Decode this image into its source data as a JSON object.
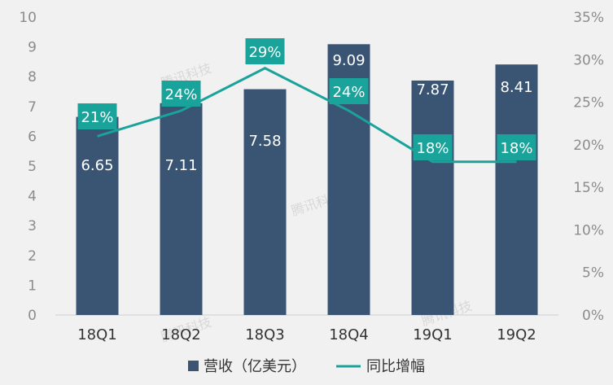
{
  "chart_data": {
    "type": "bar",
    "categories": [
      "18Q1",
      "18Q2",
      "18Q3",
      "18Q4",
      "19Q1",
      "19Q2"
    ],
    "series": [
      {
        "name": "营收（亿美元）",
        "type": "bar",
        "axis": "left",
        "values": [
          6.65,
          7.11,
          7.58,
          9.09,
          7.87,
          8.41
        ],
        "labels": [
          "6.65",
          "7.11",
          "7.58",
          "9.09",
          "7.87",
          "8.41"
        ],
        "color": "#3a5573"
      },
      {
        "name": "同比增幅",
        "type": "line",
        "axis": "right",
        "values": [
          21,
          24,
          29,
          24,
          18,
          18
        ],
        "labels": [
          "21%",
          "24%",
          "29%",
          "24%",
          "18%",
          "18%"
        ],
        "color": "#1aa39a"
      }
    ],
    "left_axis": {
      "ylim": [
        0,
        10
      ],
      "ticks": [
        "0",
        "1",
        "2",
        "3",
        "4",
        "5",
        "6",
        "7",
        "8",
        "9",
        "10"
      ]
    },
    "right_axis": {
      "ylim": [
        0,
        35
      ],
      "ticks": [
        "0%",
        "5%",
        "10%",
        "15%",
        "20%",
        "25%",
        "30%",
        "35%"
      ]
    },
    "legend": {
      "placement": "bottom",
      "items": [
        "营收（亿美元）",
        "同比增幅"
      ]
    },
    "watermark": "腾讯科技",
    "grid": false
  },
  "colors": {
    "background": "#f1f1f1",
    "bar": "#3a5573",
    "line": "#1aa39a",
    "label_box": "#1aa39a",
    "axis_text": "#8c8c8c"
  }
}
